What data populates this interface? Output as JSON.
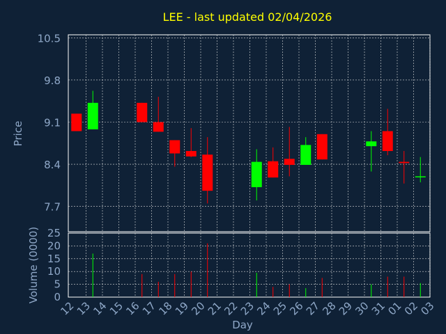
{
  "colors": {
    "background": "#0f2136",
    "title": "#ffff00",
    "axis_text": "#8fa8c8",
    "frame": "#ffffff",
    "grid": "#dddddd",
    "up": "#00ff00",
    "down": "#ff0000"
  },
  "chart_data": {
    "type": "candlestick",
    "title": "LEE - last updated 02/04/2026",
    "xlabel": "Day",
    "price_panel": {
      "ylabel": "Price",
      "ylim": [
        7.28,
        10.55
      ],
      "yticks": [
        "10.5",
        "9.8",
        "9.1",
        "8.4",
        "7.7"
      ],
      "ytick_values": [
        10.5,
        9.8,
        9.1,
        8.4,
        7.7
      ]
    },
    "volume_panel": {
      "ylabel": "Volume (0000)",
      "ylim": [
        0,
        25
      ],
      "yticks": [
        "25",
        "20",
        "15",
        "10",
        "5",
        "0"
      ],
      "ytick_values": [
        25,
        20,
        15,
        10,
        5,
        0
      ]
    },
    "x_ticks": [
      "12",
      "13",
      "14",
      "15",
      "16",
      "17",
      "18",
      "19",
      "20",
      "21",
      "22",
      "23",
      "24",
      "25",
      "26",
      "27",
      "28",
      "29",
      "30",
      "31",
      "01",
      "02",
      "03"
    ],
    "grid": true,
    "candles": [
      {
        "day": "12",
        "open": 9.24,
        "high": 9.24,
        "low": 8.95,
        "close": 8.95,
        "volume": 0
      },
      {
        "day": "13",
        "open": 8.98,
        "high": 9.62,
        "low": 8.98,
        "close": 9.42,
        "volume": 17
      },
      {
        "day": "16",
        "open": 9.42,
        "high": 9.42,
        "low": 9.1,
        "close": 9.1,
        "volume": 9
      },
      {
        "day": "17",
        "open": 9.1,
        "high": 9.52,
        "low": 8.94,
        "close": 8.94,
        "volume": 6
      },
      {
        "day": "18",
        "open": 8.8,
        "high": 8.8,
        "low": 8.36,
        "close": 8.58,
        "volume": 9
      },
      {
        "day": "19",
        "open": 8.62,
        "high": 9.0,
        "low": 8.52,
        "close": 8.53,
        "volume": 10
      },
      {
        "day": "20",
        "open": 8.56,
        "high": 8.85,
        "low": 7.75,
        "close": 7.96,
        "volume": 21
      },
      {
        "day": "23",
        "open": 8.02,
        "high": 8.65,
        "low": 7.8,
        "close": 8.44,
        "volume": 9.5
      },
      {
        "day": "24",
        "open": 8.45,
        "high": 8.68,
        "low": 8.18,
        "close": 8.18,
        "volume": 4
      },
      {
        "day": "25",
        "open": 8.49,
        "high": 9.02,
        "low": 8.2,
        "close": 8.39,
        "volume": 5
      },
      {
        "day": "26",
        "open": 8.39,
        "high": 8.85,
        "low": 8.39,
        "close": 8.72,
        "volume": 3.5
      },
      {
        "day": "27",
        "open": 8.9,
        "high": 8.9,
        "low": 8.48,
        "close": 8.48,
        "volume": 7.5
      },
      {
        "day": "30",
        "open": 8.7,
        "high": 8.95,
        "low": 8.28,
        "close": 8.78,
        "volume": 5
      },
      {
        "day": "31",
        "open": 8.95,
        "high": 9.32,
        "low": 8.55,
        "close": 8.62,
        "volume": 8
      },
      {
        "day": "01",
        "open": 8.44,
        "high": 8.62,
        "low": 8.08,
        "close": 8.42,
        "volume": 8
      },
      {
        "day": "02",
        "open": 8.19,
        "high": 8.52,
        "low": 8.1,
        "close": 8.2,
        "volume": 5.5
      }
    ]
  }
}
